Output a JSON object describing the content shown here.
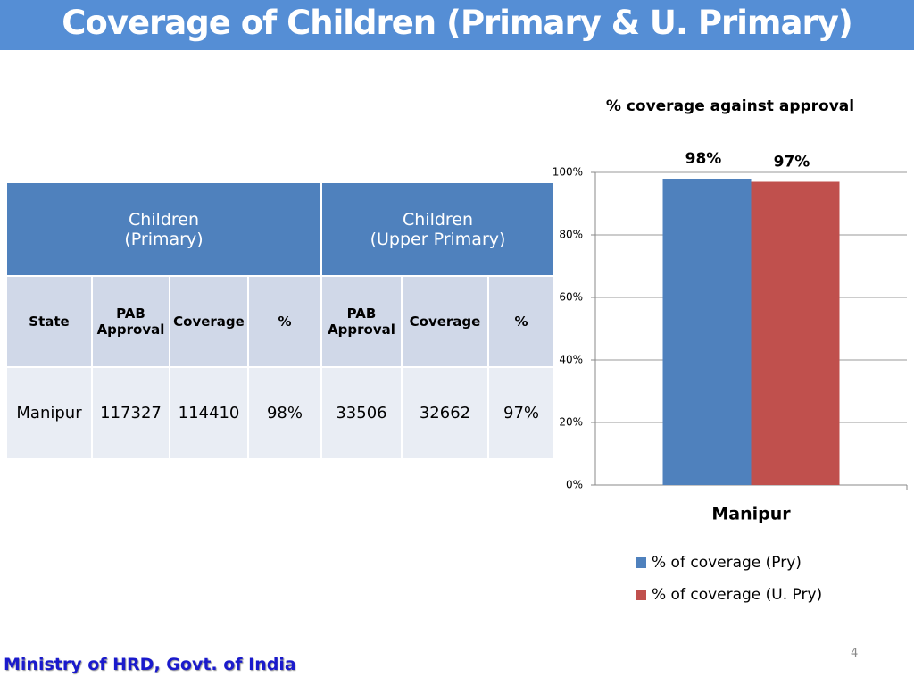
{
  "header": {
    "title": "Coverage of Children (Primary & U. Primary)"
  },
  "table": {
    "groups": [
      "Children\n(Primary)",
      "Children\n(Upper Primary)"
    ],
    "columns": [
      "State",
      "PAB\nApproval",
      "Coverage",
      "%",
      "PAB\nApproval",
      "Coverage",
      "%"
    ],
    "rows": [
      [
        "Manipur",
        "117327",
        "114410",
        "98%",
        "33506",
        "32662",
        "97%"
      ]
    ]
  },
  "chart_data": {
    "type": "bar",
    "title": "% coverage against approval",
    "categories": [
      "Manipur"
    ],
    "series": [
      {
        "name": "% of coverage (Pry)",
        "color": "#4f81bd",
        "values": [
          98
        ],
        "value_labels": [
          "98%"
        ]
      },
      {
        "name": "% of coverage (U. Pry)",
        "color": "#c0504d",
        "values": [
          97
        ],
        "value_labels": [
          "97%"
        ]
      }
    ],
    "ylim": [
      0,
      100
    ],
    "yticks": [
      {
        "value": 0,
        "label": "0%"
      },
      {
        "value": 20,
        "label": "20%"
      },
      {
        "value": 40,
        "label": "40%"
      },
      {
        "value": 60,
        "label": "60%"
      },
      {
        "value": 80,
        "label": "80%"
      },
      {
        "value": 100,
        "label": "100%"
      }
    ],
    "grid": true,
    "legend": "bottom"
  },
  "footer": {
    "text": "Ministry of HRD, Govt. of India",
    "page_number": "4"
  }
}
